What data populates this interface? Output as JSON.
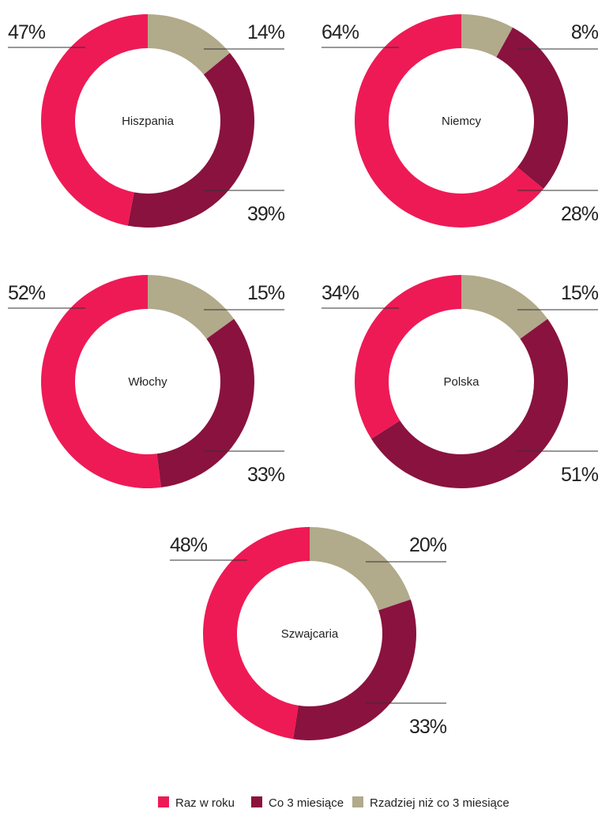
{
  "chart_data": [
    {
      "type": "pie",
      "title": "Hiszpania",
      "categories": [
        "Raz w roku",
        "Co 3 miesiące",
        "Rzadziej niż co 3 miesiące"
      ],
      "colors": [
        "#ee1a55",
        "#8a123e",
        "#b1aa8b"
      ],
      "values": [
        47,
        39,
        14
      ],
      "value_labels": [
        "47%",
        "39%",
        "14%"
      ]
    },
    {
      "type": "pie",
      "title": "Niemcy",
      "categories": [
        "Raz w roku",
        "Co 3 miesiące",
        "Rzadziej niż co 3 miesiące"
      ],
      "colors": [
        "#ee1a55",
        "#8a123e",
        "#b1aa8b"
      ],
      "values": [
        64,
        28,
        8
      ],
      "value_labels": [
        "64%",
        "28%",
        "8%"
      ]
    },
    {
      "type": "pie",
      "title": "Włochy",
      "categories": [
        "Raz w roku",
        "Co 3 miesiące",
        "Rzadziej niż co 3 miesiące"
      ],
      "colors": [
        "#ee1a55",
        "#8a123e",
        "#b1aa8b"
      ],
      "values": [
        52,
        33,
        15
      ],
      "value_labels": [
        "52%",
        "33%",
        "15%"
      ]
    },
    {
      "type": "pie",
      "title": "Polska",
      "categories": [
        "Raz w roku",
        "Co 3 miesiące",
        "Rzadziej niż co 3 miesiące"
      ],
      "colors": [
        "#ee1a55",
        "#8a123e",
        "#b1aa8b"
      ],
      "values": [
        34,
        51,
        15
      ],
      "value_labels": [
        "34%",
        "51%",
        "15%"
      ]
    },
    {
      "type": "pie",
      "title": "Szwajcaria",
      "categories": [
        "Raz w roku",
        "Co 3 miesiące",
        "Rzadziej niż co 3 miesiące"
      ],
      "colors": [
        "#ee1a55",
        "#8a123e",
        "#b1aa8b"
      ],
      "values": [
        48,
        33,
        20
      ],
      "value_labels": [
        "48%",
        "33%",
        "20%"
      ]
    }
  ]
}
